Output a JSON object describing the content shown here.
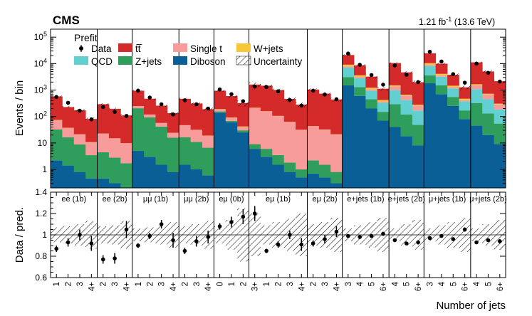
{
  "header": {
    "experiment": "CMS",
    "lumi": "1.21 fb",
    "lumi_sup": "-1",
    "energy": "(13.6 TeV)",
    "stage": "Prefit"
  },
  "colors": {
    "ttbar": "#d42a2a",
    "single_t": "#f79b9b",
    "wjets": "#f7c737",
    "qcd": "#62d0d0",
    "zjets": "#2f9e5c",
    "diboson": "#0a5f96",
    "data": "#000000"
  },
  "chart_data": {
    "type": "bar",
    "title": "Prefit",
    "xlabel": "Number of jets",
    "ylabel": "Events / bin",
    "ratio_ylabel": "Data / pred.",
    "ylim": [
      0.2,
      200000
    ],
    "yscale": "log",
    "ratio_ylim": [
      0.6,
      1.4
    ],
    "yticks": [
      {
        "v": 1,
        "label": "1"
      },
      {
        "v": 10,
        "label": "10"
      },
      {
        "v": 100,
        "label": "10",
        "sup": "2"
      },
      {
        "v": 1000,
        "label": "10",
        "sup": "3"
      },
      {
        "v": 10000,
        "label": "10",
        "sup": "4"
      },
      {
        "v": 100000,
        "label": "10",
        "sup": "5"
      }
    ],
    "ratio_yticks": [
      0.6,
      0.8,
      1.0,
      1.2,
      1.4
    ],
    "ratio_ytick_labels": [
      "0.6",
      "0.8",
      "1",
      "1.2",
      "1.4"
    ],
    "legend": [
      {
        "key": "data",
        "label": "Data",
        "style": "marker"
      },
      {
        "key": "ttbar",
        "label": "tt̅",
        "style": "fill"
      },
      {
        "key": "single_t",
        "label": "Single t",
        "style": "fill"
      },
      {
        "key": "wjets",
        "label": "W+jets",
        "style": "fill"
      },
      {
        "key": "qcd",
        "label": "QCD",
        "style": "fill"
      },
      {
        "key": "zjets",
        "label": "Z+jets",
        "style": "fill"
      },
      {
        "key": "diboson",
        "label": "Diboson",
        "style": "fill"
      },
      {
        "key": "unc",
        "label": "Uncertainty",
        "style": "hatch"
      }
    ],
    "stack_order": [
      "diboson",
      "zjets",
      "qcd",
      "single_t",
      "wjets",
      "ttbar"
    ],
    "regions": [
      {
        "name": "ee (1b)",
        "categories": [
          "1",
          "2",
          "3",
          "4+"
        ],
        "stack": {
          "diboson": [
            2.2,
            1.4,
            0.8,
            0.45
          ],
          "zjets": [
            30,
            15,
            8,
            3
          ],
          "qcd": [
            0,
            0,
            0,
            0
          ],
          "single_t": [
            40,
            20,
            12,
            7
          ],
          "wjets": [
            2,
            1,
            0.5,
            0.3
          ],
          "ttbar": [
            500,
            190,
            150,
            70
          ]
        },
        "data": [
          550,
          330,
          165,
          78
        ],
        "data_err": [
          0.03,
          0.04,
          0.05,
          0.07
        ],
        "ratio": [
          0.87,
          0.93,
          1.0,
          0.92
        ],
        "ratio_err": [
          0.03,
          0.04,
          0.05,
          0.07
        ],
        "unc": [
          0.07,
          0.08,
          0.1,
          0.13
        ]
      },
      {
        "name": "ee (2b)",
        "categories": [
          "2",
          "3",
          "4+"
        ],
        "stack": {
          "diboson": [
            0.45,
            0.3,
            0.2
          ],
          "zjets": [
            4,
            2.5,
            1.5
          ],
          "qcd": [
            0,
            0,
            0
          ],
          "single_t": [
            18,
            12,
            8
          ],
          "wjets": [
            0.2,
            0.2,
            0.1
          ],
          "ttbar": [
            270,
            180,
            100
          ]
        },
        "data": [
          230,
          150,
          105
        ],
        "data_err": [
          0.04,
          0.05,
          0.07
        ],
        "ratio": [
          0.77,
          0.78,
          1.05
        ],
        "ratio_err": [
          0.04,
          0.05,
          0.08
        ],
        "unc": [
          0.08,
          0.09,
          0.13
        ]
      },
      {
        "name": "μμ (1b)",
        "categories": [
          "1",
          "2",
          "3",
          "4+"
        ],
        "stack": {
          "diboson": [
            5,
            3,
            1.5,
            0.8
          ],
          "zjets": [
            200,
            90,
            40,
            15
          ],
          "qcd": [
            0,
            0,
            0,
            0
          ],
          "single_t": [
            40,
            25,
            15,
            8
          ],
          "wjets": [
            2,
            1,
            0.5,
            0.3
          ],
          "ttbar": [
            700,
            350,
            200,
            110
          ]
        },
        "data": [
          950,
          520,
          290,
          120
        ],
        "data_err": [
          0.02,
          0.03,
          0.04,
          0.06
        ],
        "ratio": [
          0.9,
          0.99,
          1.1,
          0.95
        ],
        "ratio_err": [
          0.02,
          0.03,
          0.04,
          0.07
        ],
        "unc": [
          0.06,
          0.07,
          0.09,
          0.12
        ]
      },
      {
        "name": "μμ (2b)",
        "categories": [
          "2",
          "3",
          "4+"
        ],
        "stack": {
          "diboson": [
            1.5,
            1,
            0.6
          ],
          "zjets": [
            15,
            10,
            6
          ],
          "qcd": [
            0,
            0,
            0
          ],
          "single_t": [
            30,
            20,
            12
          ],
          "wjets": [
            0.5,
            0.4,
            0.3
          ],
          "ttbar": [
            420,
            280,
            170
          ]
        },
        "data": [
          410,
          290,
          200
        ],
        "data_err": [
          0.03,
          0.04,
          0.05
        ],
        "ratio": [
          0.85,
          0.94,
          0.98
        ],
        "ratio_err": [
          0.03,
          0.05,
          0.06
        ],
        "unc": [
          0.08,
          0.1,
          0.13
        ]
      },
      {
        "name": "eμ (0b)",
        "categories": [
          "0",
          "1",
          "2"
        ],
        "stack": {
          "diboson": [
            140,
            60,
            25
          ],
          "zjets": [
            15,
            8,
            5
          ],
          "qcd": [
            0,
            0,
            0
          ],
          "single_t": [
            30,
            20,
            10
          ],
          "wjets": [
            5,
            3,
            2
          ],
          "ttbar": [
            750,
            500,
            280
          ]
        },
        "data": [
          1050,
          700,
          380
        ],
        "data_err": [
          0.03,
          0.04,
          0.05
        ],
        "ratio": [
          1.08,
          1.12,
          1.17
        ],
        "ratio_err": [
          0.03,
          0.05,
          0.07
        ],
        "unc": [
          0.08,
          0.14,
          0.25
        ]
      },
      {
        "name": "eμ (1b)",
        "categories": [
          "3+",
          "1",
          "2",
          "3",
          "4+"
        ],
        "stack": {
          "diboson": [
            6,
            3,
            1.5,
            0.8,
            0.5
          ],
          "zjets": [
            3,
            3,
            2,
            1,
            0.5
          ],
          "qcd": [
            0,
            0,
            0,
            0,
            0
          ],
          "single_t": [
            200,
            150,
            100,
            60,
            30
          ],
          "wjets": [
            5,
            3,
            2,
            1,
            0.5
          ],
          "ttbar": [
            1400,
            1300,
            900,
            400,
            250
          ]
        },
        "data": [
          1350,
          1300,
          900,
          420,
          260
        ],
        "data_err": [
          0.05,
          0.02,
          0.03,
          0.04,
          0.05
        ],
        "ratio": [
          1.2,
          0.85,
          0.91,
          1.0,
          0.91
        ],
        "ratio_err": [
          0.07,
          0.02,
          0.03,
          0.04,
          0.06
        ],
        "unc": [
          0.2,
          0.09,
          0.12,
          0.15,
          0.2
        ]
      },
      {
        "name": "eμ (2b)",
        "categories": [
          "2",
          "3",
          "4+"
        ],
        "stack": {
          "diboson": [
            0.7,
            0.5,
            0.3
          ],
          "zjets": [
            1.5,
            1,
            0.5
          ],
          "qcd": [
            0,
            0,
            0
          ],
          "single_t": [
            40,
            30,
            20
          ],
          "wjets": [
            1,
            0.8,
            0.5
          ],
          "ttbar": [
            1000,
            700,
            420
          ]
        },
        "data": [
          950,
          680,
          450
        ],
        "data_err": [
          0.03,
          0.04,
          0.05
        ],
        "ratio": [
          0.92,
          0.96,
          1.03
        ],
        "ratio_err": [
          0.03,
          0.04,
          0.05
        ],
        "unc": [
          0.1,
          0.12,
          0.16
        ]
      },
      {
        "name": "e+jets (1b)",
        "categories": [
          "3",
          "4",
          "5",
          "6+"
        ],
        "stack": {
          "diboson": [
            1500,
            600,
            200,
            70
          ],
          "zjets": [
            1600,
            700,
            250,
            80
          ],
          "qcd": [
            4000,
            1500,
            500,
            180
          ],
          "single_t": [
            800,
            350,
            120,
            40
          ],
          "wjets": [
            1200,
            450,
            150,
            50
          ],
          "ttbar": [
            12000,
            5000,
            2000,
            700
          ]
        },
        "data": [
          24000,
          9000,
          3700,
          1600
        ],
        "data_err": [
          0.01,
          0.01,
          0.01,
          0.02
        ],
        "ratio": [
          0.99,
          0.98,
          0.99,
          1.01
        ],
        "ratio_err": [
          0.01,
          0.01,
          0.01,
          0.02
        ],
        "unc": [
          0.06,
          0.09,
          0.12,
          0.16
        ]
      },
      {
        "name": "e+jets (2b)",
        "categories": [
          "4",
          "5",
          "6+"
        ],
        "stack": {
          "diboson": [
            40,
            18,
            8
          ],
          "zjets": [
            250,
            100,
            40
          ],
          "qcd": [
            700,
            300,
            120
          ],
          "single_t": [
            400,
            200,
            90
          ],
          "wjets": [
            120,
            50,
            20
          ],
          "ttbar": [
            9000,
            4000,
            1700
          ]
        },
        "data": [
          8500,
          3800,
          2000
        ],
        "data_err": [
          0.01,
          0.01,
          0.02
        ],
        "ratio": [
          0.95,
          0.92,
          0.93
        ],
        "ratio_err": [
          0.01,
          0.01,
          0.02
        ],
        "unc": [
          0.06,
          0.1,
          0.14
        ]
      },
      {
        "name": "μ+jets (1b)",
        "categories": [
          "3",
          "4",
          "5",
          "6+"
        ],
        "stack": {
          "diboson": [
            1800,
            700,
            250,
            80
          ],
          "zjets": [
            1800,
            800,
            300,
            90
          ],
          "qcd": [
            4500,
            1700,
            600,
            200
          ],
          "single_t": [
            900,
            400,
            140,
            45
          ],
          "wjets": [
            1400,
            500,
            170,
            55
          ],
          "ttbar": [
            14000,
            5800,
            2300,
            800
          ]
        },
        "data": [
          28000,
          12000,
          4000,
          1900
        ],
        "data_err": [
          0.01,
          0.01,
          0.01,
          0.02
        ],
        "ratio": [
          0.97,
          0.99,
          0.96,
          1.05
        ],
        "ratio_err": [
          0.01,
          0.01,
          0.01,
          0.02
        ],
        "unc": [
          0.06,
          0.09,
          0.12,
          0.16
        ]
      },
      {
        "name": "μ+jets (2b)",
        "categories": [
          "4",
          "5",
          "6+"
        ],
        "stack": {
          "diboson": [
            45,
            20,
            9
          ],
          "zjets": [
            280,
            110,
            45
          ],
          "qcd": [
            750,
            320,
            130
          ],
          "single_t": [
            450,
            220,
            100
          ],
          "wjets": [
            130,
            55,
            22
          ],
          "ttbar": [
            9500,
            4300,
            1850
          ]
        },
        "data": [
          10000,
          4500,
          2100
        ],
        "data_err": [
          0.01,
          0.01,
          0.02
        ],
        "ratio": [
          0.93,
          0.95,
          0.94
        ],
        "ratio_err": [
          0.01,
          0.01,
          0.02
        ],
        "unc": [
          0.06,
          0.1,
          0.14
        ]
      }
    ]
  }
}
